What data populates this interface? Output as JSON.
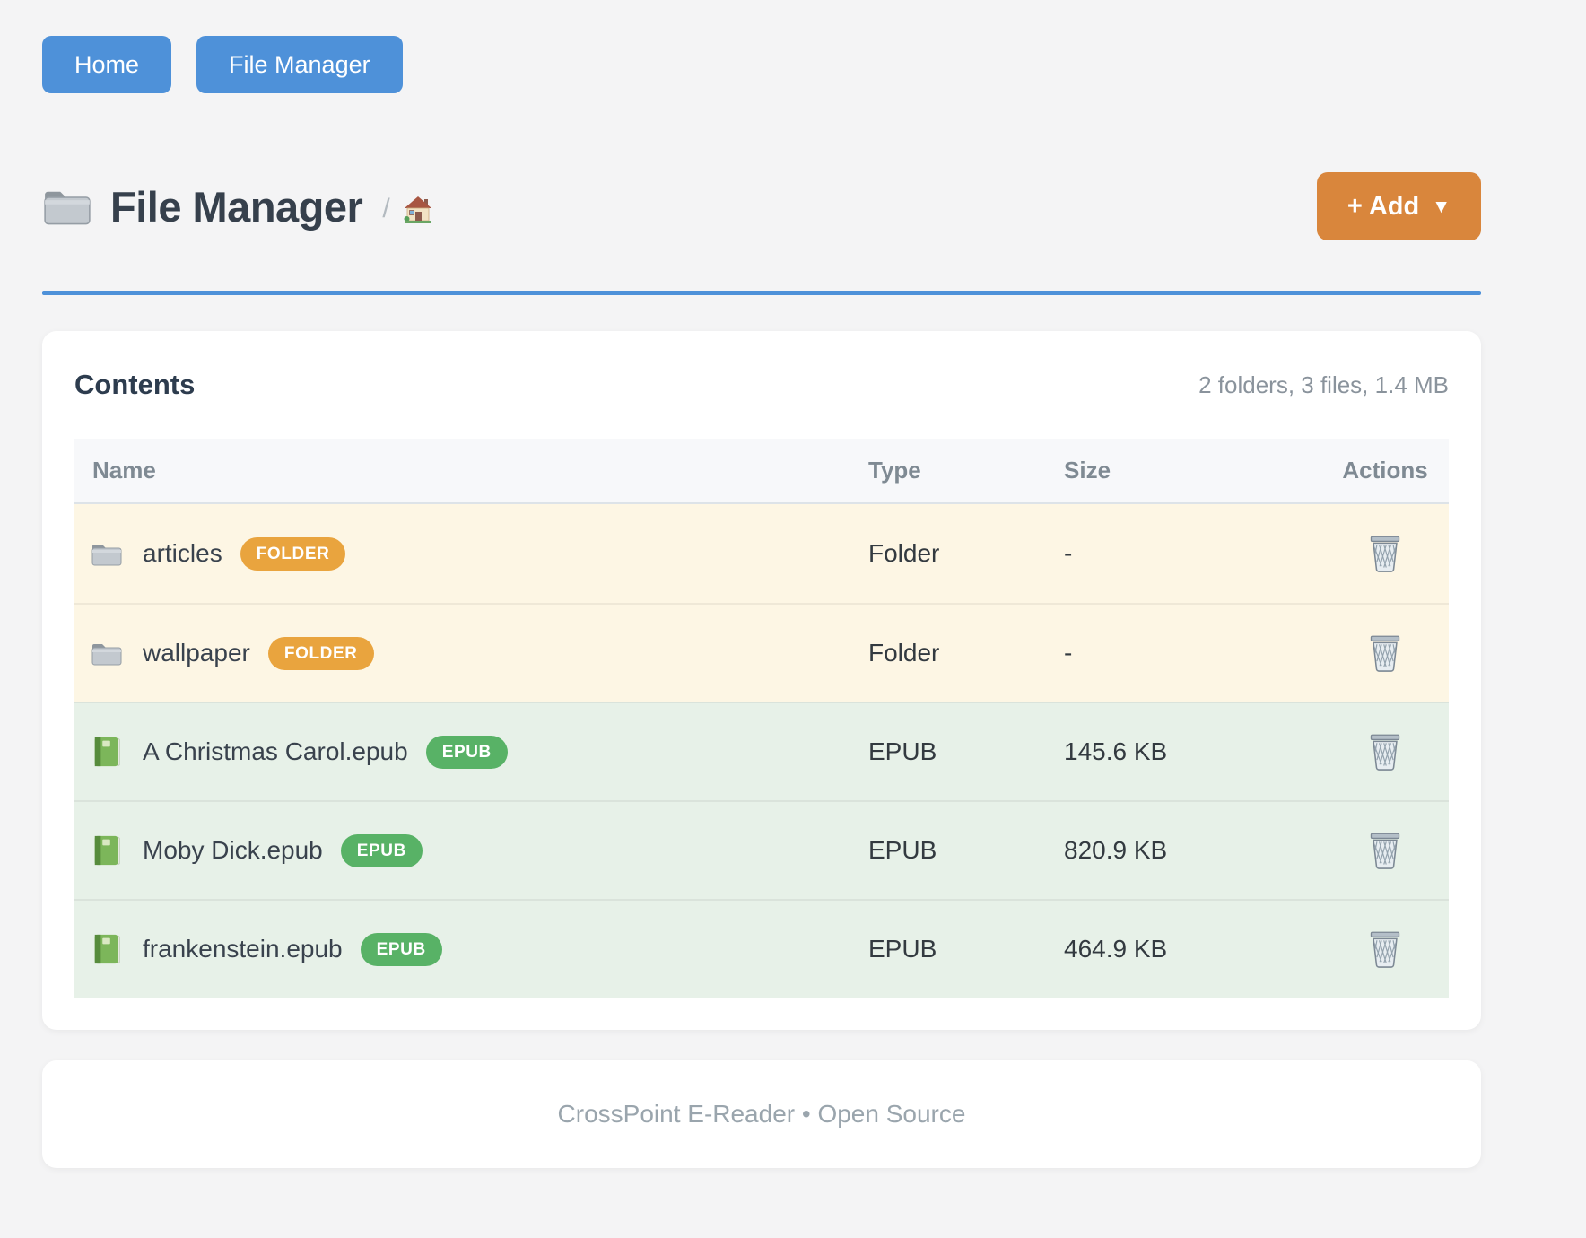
{
  "nav": {
    "home_label": "Home",
    "file_manager_label": "File Manager"
  },
  "header": {
    "title": "File Manager",
    "separator": "/",
    "add_label": "+ Add",
    "add_caret": "▼"
  },
  "contents": {
    "heading": "Contents",
    "summary": "2 folders, 3 files, 1.4 MB",
    "table": {
      "headers": [
        "Name",
        "Type",
        "Size",
        "Actions"
      ],
      "rows": [
        {
          "name": "articles",
          "badge": "FOLDER",
          "kind": "folder",
          "icon": "folder-icon",
          "type": "Folder",
          "size": "-"
        },
        {
          "name": "wallpaper",
          "badge": "FOLDER",
          "kind": "folder",
          "icon": "folder-icon",
          "type": "Folder",
          "size": "-"
        },
        {
          "name": "A Christmas Carol.epub",
          "badge": "EPUB",
          "kind": "epub",
          "icon": "book-icon",
          "type": "EPUB",
          "size": "145.6 KB"
        },
        {
          "name": "Moby Dick.epub",
          "badge": "EPUB",
          "kind": "epub",
          "icon": "book-icon",
          "type": "EPUB",
          "size": "820.9 KB"
        },
        {
          "name": "frankenstein.epub",
          "badge": "EPUB",
          "kind": "epub",
          "icon": "book-icon",
          "type": "EPUB",
          "size": "464.9 KB"
        }
      ]
    }
  },
  "footer": {
    "text": "CrossPoint E-Reader • Open Source"
  },
  "colors": {
    "primary_blue": "#4e91d9",
    "add_orange": "#d9863c",
    "badge_orange": "#e9a43e",
    "badge_green": "#58b266",
    "folder_row_bg": "#fdf6e4",
    "epub_row_bg": "#e7f1e8",
    "page_bg": "#f4f4f5"
  },
  "icons": {
    "title": "folder-icon",
    "breadcrumb_home": "house-icon",
    "folder_row": "folder-icon",
    "epub_row": "book-icon",
    "delete": "trash-icon"
  }
}
